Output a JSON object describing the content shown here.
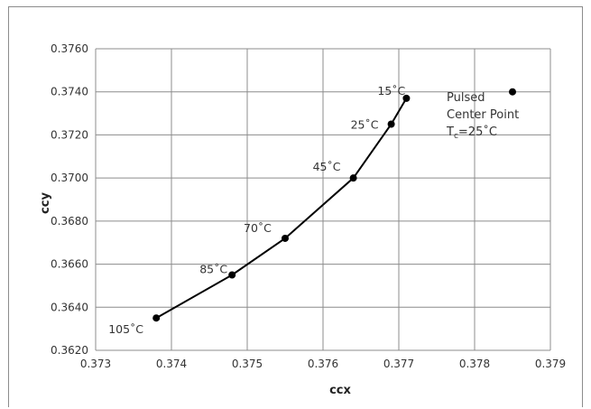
{
  "chart_data": {
    "type": "scatter",
    "title": "",
    "xlabel": "ccx",
    "ylabel": "ccy",
    "xlim": [
      0.373,
      0.379
    ],
    "ylim": [
      0.362,
      0.376
    ],
    "grid": true,
    "legend": "none",
    "x_ticks": [
      "0.373",
      "0.374",
      "0.375",
      "0.376",
      "0.377",
      "0.378",
      "0.379"
    ],
    "y_ticks": [
      "0.3620",
      "0.3640",
      "0.3660",
      "0.3680",
      "0.3700",
      "0.3720",
      "0.3740",
      "0.3760"
    ],
    "series": [
      {
        "connected": true,
        "points": [
          {
            "x": 0.3738,
            "y": 0.3635,
            "label": "105˚C"
          },
          {
            "x": 0.3748,
            "y": 0.3655,
            "label": "85˚C"
          },
          {
            "x": 0.3755,
            "y": 0.3672,
            "label": "70˚C"
          },
          {
            "x": 0.3764,
            "y": 0.37,
            "label": "45˚C"
          },
          {
            "x": 0.3769,
            "y": 0.3725,
            "label": "25˚C"
          },
          {
            "x": 0.3771,
            "y": 0.3737,
            "label": "15˚C"
          }
        ]
      },
      {
        "connected": false,
        "points": [
          {
            "x": 0.3785,
            "y": 0.374,
            "label": ""
          }
        ]
      }
    ],
    "annotation": {
      "line1": "Pulsed",
      "line2": "Center Point",
      "tc_main": "T",
      "tc_sub": "c",
      "tc_rest": "=25˚C"
    },
    "colors": {
      "line": "#000000",
      "marker": "#000000",
      "grid": "#8c8c8c"
    }
  }
}
